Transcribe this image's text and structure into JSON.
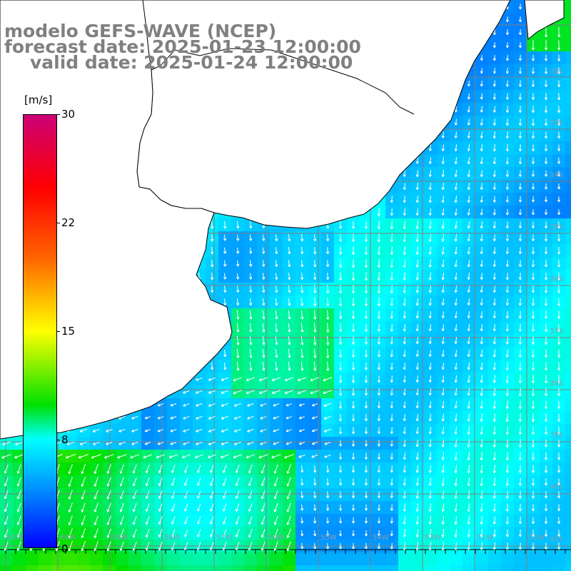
{
  "title": {
    "line1": "modelo GEFS-WAVE (NCEP)",
    "line2": "forecast date: 2025-01-23 12:00:00",
    "line3": "valid date: 2025-01-24 12:00:00"
  },
  "colorbar": {
    "unit": "[m/s]",
    "ticks": [
      {
        "label": "30",
        "value": 30
      },
      {
        "label": "22",
        "value": 22
      },
      {
        "label": "15",
        "value": 15
      },
      {
        "label": "8",
        "value": 8
      },
      {
        "label": "0",
        "value": 0
      }
    ],
    "colors": [
      "#0000ff",
      "#0080ff",
      "#00ffff",
      "#00e000",
      "#ffff00",
      "#ff6400",
      "#ff0000",
      "#cc0077"
    ]
  },
  "map": {
    "variable": "wind speed and direction",
    "land_color": "#ffffff",
    "grid_color": "#808080",
    "coastline_color": "#000000",
    "arrow_color": "#ffffff",
    "lat_labels": [
      "32S",
      "33S",
      "34S",
      "35S",
      "36S",
      "37S",
      "38S",
      "39S",
      "40S",
      "41S"
    ],
    "lon_labels": [
      "61W",
      "60W",
      "59W",
      "58W",
      "57W",
      "56W",
      "55W",
      "54W",
      "53W",
      "52W",
      "51W"
    ]
  }
}
